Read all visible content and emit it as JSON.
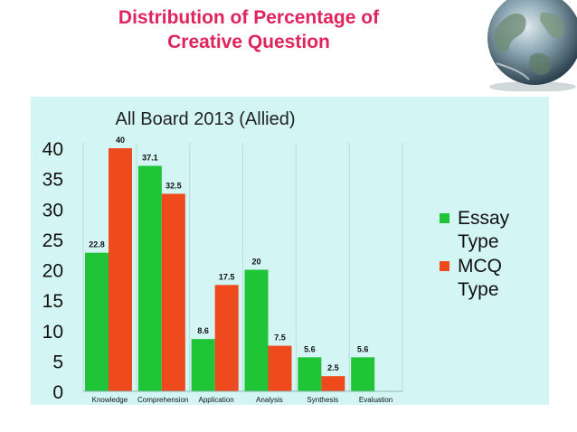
{
  "slide": {
    "title_line1": "Distribution of Percentage of",
    "title_line2": "Creative Question",
    "decoration": "globe-icon"
  },
  "colors": {
    "title": "#e0245e",
    "plot_background": "#d3f5f4",
    "essay": "#1fc437",
    "mcq": "#ee4a1e"
  },
  "chart_data": {
    "type": "bar",
    "title": "All Board 2013 (Allied)",
    "xlabel": "",
    "ylabel": "",
    "ylim": [
      0,
      40
    ],
    "yticks": [
      "0",
      "5",
      "10",
      "15",
      "20",
      "25",
      "30",
      "35",
      "40"
    ],
    "categories": [
      "Knowledge",
      "Comprehension",
      "Application",
      "Analysis",
      "Synthesis",
      "Evaluation"
    ],
    "series": [
      {
        "name_lines": [
          "Essay",
          "Type"
        ],
        "color": "#1fc437",
        "values": [
          22.8,
          37.1,
          8.6,
          20,
          5.6,
          5.6
        ],
        "labels": [
          "22.8",
          "37.1",
          "8.6",
          "20",
          "5.6",
          "5.6"
        ]
      },
      {
        "name_lines": [
          "MCQ",
          "Type"
        ],
        "color": "#ee4a1e",
        "values": [
          40,
          32.5,
          17.5,
          7.5,
          2.5,
          null
        ],
        "labels": [
          "40",
          "32.5",
          "17.5",
          "7.5",
          "2.5",
          null
        ]
      }
    ],
    "grid": "vertical",
    "legend": "right"
  }
}
